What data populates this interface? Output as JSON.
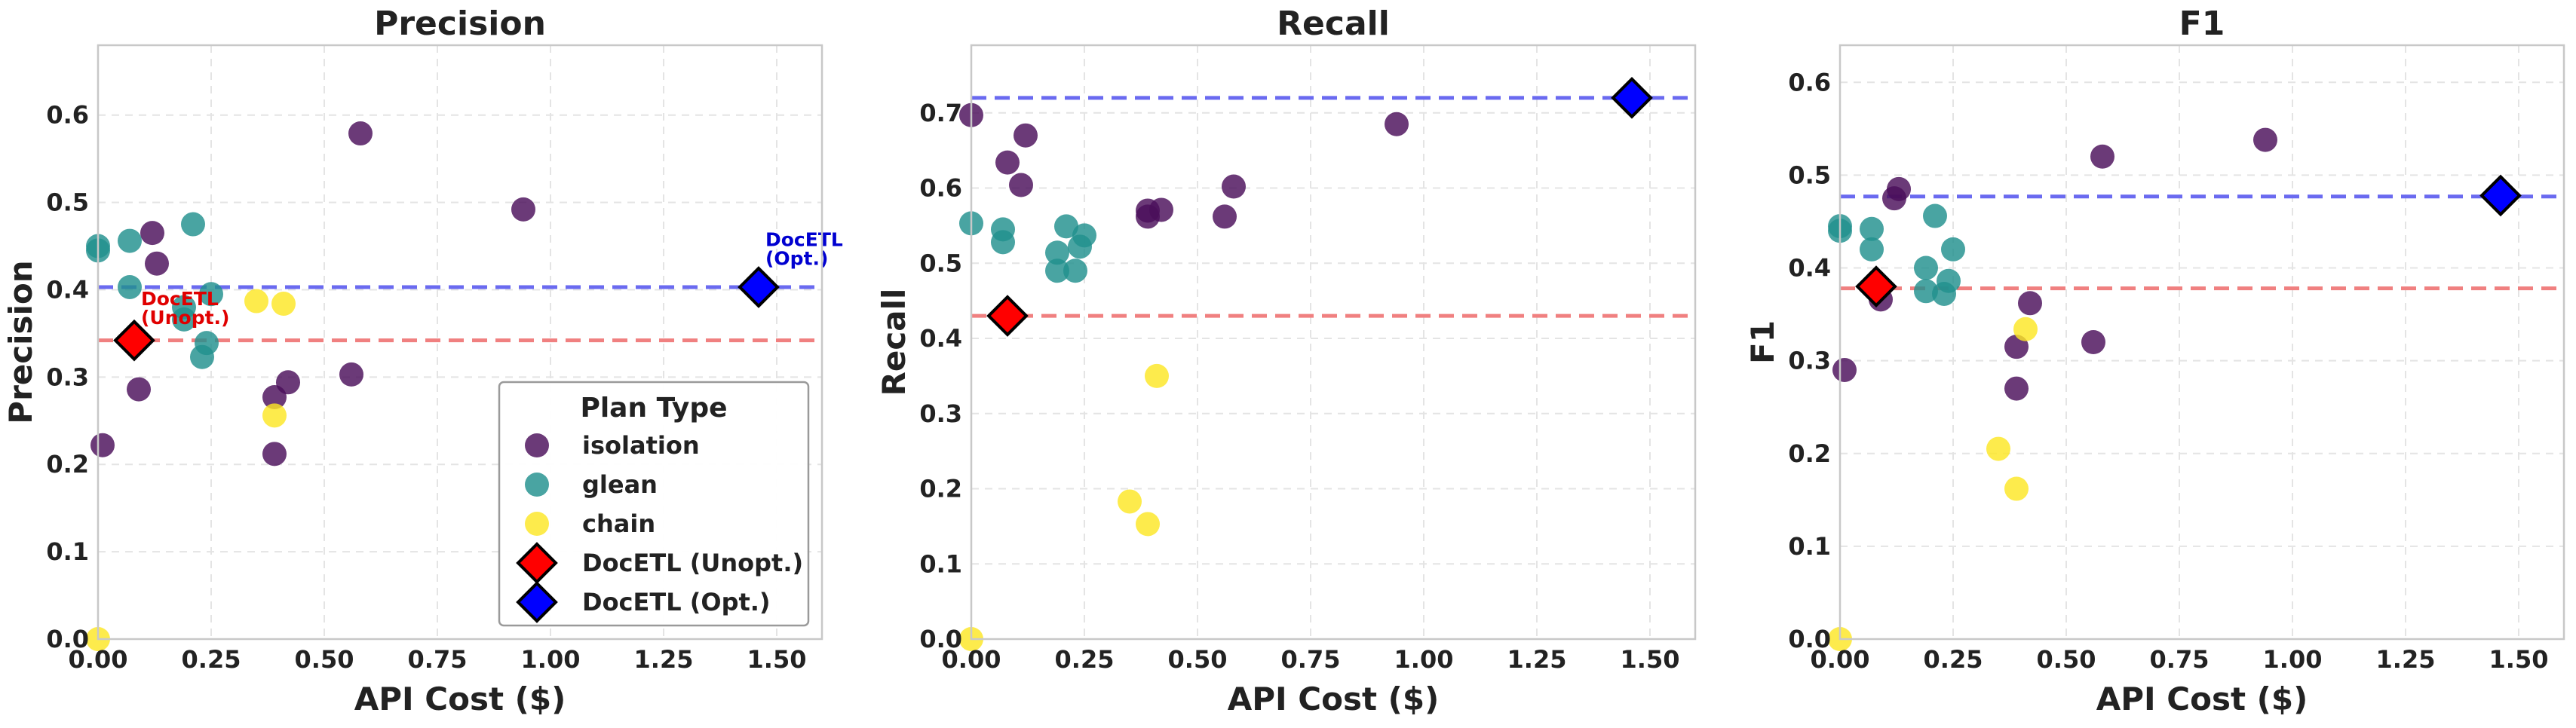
{
  "chart_data": [
    {
      "type": "scatter",
      "title": "Precision",
      "xlabel": "API Cost ($)",
      "ylabel": "Precision",
      "xlim": [
        0,
        1.6
      ],
      "ylim": [
        0,
        0.68
      ],
      "xticks": [
        "0.00",
        "0.25",
        "0.50",
        "0.75",
        "1.00",
        "1.25",
        "1.50"
      ],
      "xtick_values": [
        0,
        0.25,
        0.5,
        0.75,
        1.0,
        1.25,
        1.5
      ],
      "yticks": [
        "0.0",
        "0.1",
        "0.2",
        "0.3",
        "0.4",
        "0.5",
        "0.6"
      ],
      "ytick_values": [
        0,
        0.1,
        0.2,
        0.3,
        0.4,
        0.5,
        0.6
      ],
      "grid": true,
      "series": [
        {
          "name": "isolation",
          "color": "#4b0f5a",
          "points": [
            [
              0.01,
              0.222
            ],
            [
              0.09,
              0.286
            ],
            [
              0.12,
              0.465
            ],
            [
              0.13,
              0.43
            ],
            [
              0.39,
              0.277
            ],
            [
              0.39,
              0.212
            ],
            [
              0.42,
              0.294
            ],
            [
              0.56,
              0.303
            ],
            [
              0.58,
              0.579
            ],
            [
              0.94,
              0.492
            ]
          ]
        },
        {
          "name": "glean",
          "color": "#21908d",
          "points": [
            [
              0.0,
              0.45
            ],
            [
              0.0,
              0.445
            ],
            [
              0.07,
              0.456
            ],
            [
              0.07,
              0.403
            ],
            [
              0.19,
              0.38
            ],
            [
              0.19,
              0.366
            ],
            [
              0.21,
              0.475
            ],
            [
              0.23,
              0.323
            ],
            [
              0.24,
              0.339
            ],
            [
              0.25,
              0.395
            ]
          ]
        },
        {
          "name": "chain",
          "color": "#fde725",
          "points": [
            [
              0.0,
              0.0
            ],
            [
              0.35,
              0.387
            ],
            [
              0.39,
              0.256
            ],
            [
              0.41,
              0.384
            ]
          ]
        }
      ],
      "markers": [
        {
          "name": "DocETL (Unopt.)",
          "color": "#ff0000",
          "x": 0.08,
          "y": 0.342
        },
        {
          "name": "DocETL (Opt.)",
          "color": "#0000ff",
          "x": 1.46,
          "y": 0.403
        }
      ],
      "hlines": [
        {
          "y": 0.342,
          "color": "#f08080"
        },
        {
          "y": 0.403,
          "color": "#6a6af0"
        }
      ],
      "annotations": [
        {
          "lines": [
            "DocETL",
            "(Unopt.)"
          ],
          "x": 0.095,
          "y": 0.352,
          "color": "#e00000"
        },
        {
          "lines": [
            "DocETL",
            "(Opt.)"
          ],
          "x": 1.475,
          "y": 0.42,
          "color": "#0000d0"
        }
      ],
      "legend": {
        "title": "Plan Type",
        "position": "lower-right",
        "entries": [
          "isolation",
          "glean",
          "chain",
          "DocETL (Unopt.)",
          "DocETL (Opt.)"
        ]
      }
    },
    {
      "type": "scatter",
      "title": "Recall",
      "xlabel": "API Cost ($)",
      "ylabel": "Recall",
      "xlim": [
        0,
        1.6
      ],
      "ylim": [
        0,
        0.79
      ],
      "xticks": [
        "0.00",
        "0.25",
        "0.50",
        "0.75",
        "1.00",
        "1.25",
        "1.50"
      ],
      "xtick_values": [
        0,
        0.25,
        0.5,
        0.75,
        1.0,
        1.25,
        1.5
      ],
      "yticks": [
        "0.0",
        "0.1",
        "0.2",
        "0.3",
        "0.4",
        "0.5",
        "0.6",
        "0.7"
      ],
      "ytick_values": [
        0,
        0.1,
        0.2,
        0.3,
        0.4,
        0.5,
        0.6,
        0.7
      ],
      "grid": true,
      "series": [
        {
          "name": "isolation",
          "color": "#4b0f5a",
          "points": [
            [
              0.0,
              0.697
            ],
            [
              0.08,
              0.634
            ],
            [
              0.11,
              0.604
            ],
            [
              0.12,
              0.67
            ],
            [
              0.39,
              0.562
            ],
            [
              0.39,
              0.57
            ],
            [
              0.42,
              0.571
            ],
            [
              0.56,
              0.562
            ],
            [
              0.58,
              0.602
            ],
            [
              0.94,
              0.685
            ]
          ]
        },
        {
          "name": "glean",
          "color": "#21908d",
          "points": [
            [
              0.0,
              0.553
            ],
            [
              0.07,
              0.545
            ],
            [
              0.07,
              0.528
            ],
            [
              0.19,
              0.514
            ],
            [
              0.19,
              0.49
            ],
            [
              0.21,
              0.549
            ],
            [
              0.23,
              0.49
            ],
            [
              0.24,
              0.522
            ],
            [
              0.25,
              0.537
            ]
          ]
        },
        {
          "name": "chain",
          "color": "#fde725",
          "points": [
            [
              0.0,
              0.0
            ],
            [
              0.35,
              0.183
            ],
            [
              0.39,
              0.153
            ],
            [
              0.41,
              0.35
            ]
          ]
        }
      ],
      "markers": [
        {
          "name": "DocETL (Unopt.)",
          "color": "#ff0000",
          "x": 0.08,
          "y": 0.43
        },
        {
          "name": "DocETL (Opt.)",
          "color": "#0000ff",
          "x": 1.46,
          "y": 0.72
        }
      ],
      "hlines": [
        {
          "y": 0.43,
          "color": "#f08080"
        },
        {
          "y": 0.72,
          "color": "#6a6af0"
        }
      ]
    },
    {
      "type": "scatter",
      "title": "F1",
      "xlabel": "API Cost ($)",
      "ylabel": "F1",
      "xlim": [
        0,
        1.6
      ],
      "ylim": [
        0,
        0.64
      ],
      "xticks": [
        "0.00",
        "0.25",
        "0.50",
        "0.75",
        "1.00",
        "1.25",
        "1.50"
      ],
      "xtick_values": [
        0,
        0.25,
        0.5,
        0.75,
        1.0,
        1.25,
        1.5
      ],
      "yticks": [
        "0.0",
        "0.1",
        "0.2",
        "0.3",
        "0.4",
        "0.5",
        "0.6"
      ],
      "ytick_values": [
        0,
        0.1,
        0.2,
        0.3,
        0.4,
        0.5,
        0.6
      ],
      "grid": true,
      "series": [
        {
          "name": "isolation",
          "color": "#4b0f5a",
          "points": [
            [
              0.01,
              0.29
            ],
            [
              0.09,
              0.366
            ],
            [
              0.12,
              0.475
            ],
            [
              0.13,
              0.485
            ],
            [
              0.39,
              0.315
            ],
            [
              0.39,
              0.27
            ],
            [
              0.42,
              0.362
            ],
            [
              0.56,
              0.32
            ],
            [
              0.58,
              0.52
            ],
            [
              0.94,
              0.538
            ]
          ]
        },
        {
          "name": "glean",
          "color": "#21908d",
          "points": [
            [
              0.0,
              0.445
            ],
            [
              0.0,
              0.44
            ],
            [
              0.07,
              0.442
            ],
            [
              0.07,
              0.42
            ],
            [
              0.19,
              0.4
            ],
            [
              0.19,
              0.375
            ],
            [
              0.21,
              0.456
            ],
            [
              0.23,
              0.372
            ],
            [
              0.24,
              0.386
            ],
            [
              0.25,
              0.42
            ]
          ]
        },
        {
          "name": "chain",
          "color": "#fde725",
          "points": [
            [
              0.0,
              0.0
            ],
            [
              0.35,
              0.205
            ],
            [
              0.39,
              0.162
            ],
            [
              0.41,
              0.334
            ]
          ]
        }
      ],
      "markers": [
        {
          "name": "DocETL (Unopt.)",
          "color": "#ff0000",
          "x": 0.08,
          "y": 0.38
        },
        {
          "name": "DocETL (Opt.)",
          "color": "#0000ff",
          "x": 1.46,
          "y": 0.478
        }
      ],
      "hlines": [
        {
          "y": 0.378,
          "color": "#f08080"
        },
        {
          "y": 0.477,
          "color": "#6a6af0"
        }
      ]
    }
  ]
}
